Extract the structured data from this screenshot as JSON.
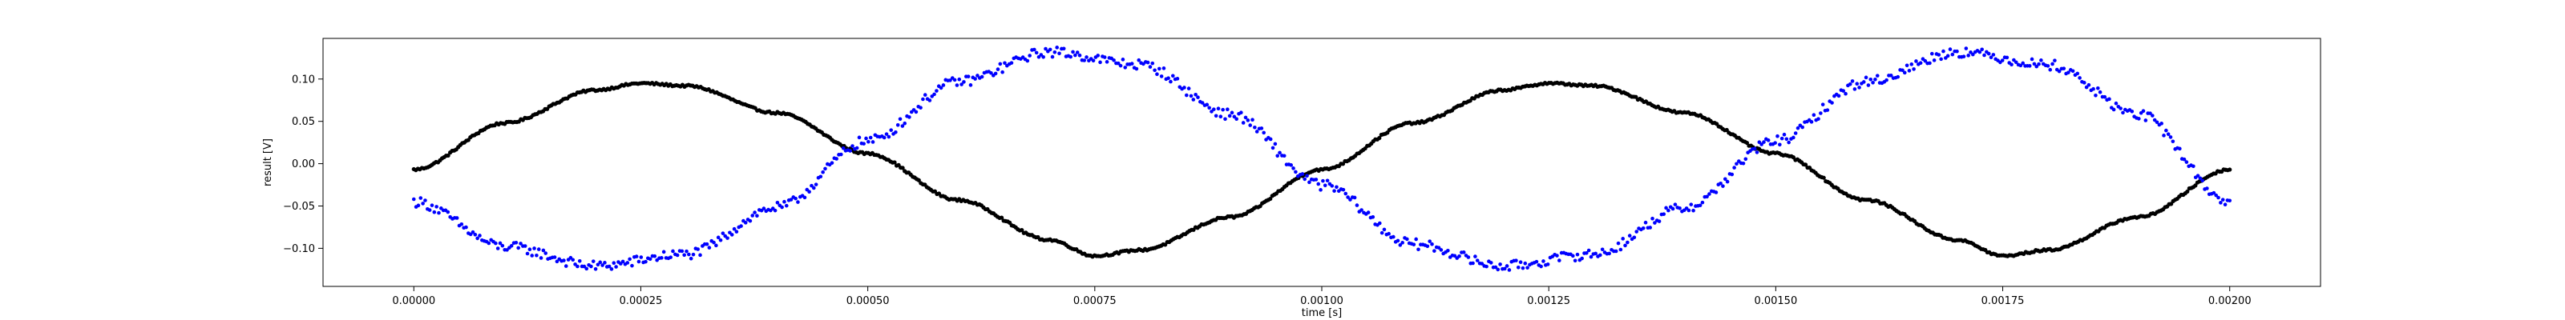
{
  "chart_data": {
    "type": "scatter",
    "title": "",
    "xlabel": "time [s]",
    "ylabel": "result [V]",
    "xlim": [
      -0.0001,
      0.0021
    ],
    "ylim": [
      -0.145,
      0.148
    ],
    "xticks": [
      0.0,
      0.00025,
      0.0005,
      0.00075,
      0.001,
      0.00125,
      0.0015,
      0.00175,
      0.002
    ],
    "xtick_labels": [
      "0.00000",
      "0.00025",
      "0.00050",
      "0.00075",
      "0.00100",
      "0.00125",
      "0.00150",
      "0.00175",
      "0.00200"
    ],
    "yticks": [
      -0.1,
      -0.05,
      0.0,
      0.05,
      0.1
    ],
    "ytick_labels": [
      "−0.10",
      "−0.05",
      "0.00",
      "0.05",
      "0.10"
    ],
    "grid": false,
    "legend": "none",
    "series": [
      {
        "color": "#000000",
        "marker": "dot",
        "x": [
          0.0,
          0.0001,
          0.0002,
          0.00025,
          0.0003,
          0.0004,
          0.0005,
          0.0006,
          0.0007,
          0.00075,
          0.0008,
          0.0009,
          0.001,
          0.0011,
          0.0012,
          0.00125,
          0.0013,
          0.0014,
          0.0015,
          0.0016,
          0.0017,
          0.00175,
          0.0018,
          0.0019,
          0.002
        ],
        "y": [
          -0.007,
          0.048,
          0.087,
          0.095,
          0.092,
          0.06,
          0.012,
          -0.043,
          -0.09,
          -0.109,
          -0.102,
          -0.063,
          -0.007,
          0.048,
          0.087,
          0.095,
          0.092,
          0.06,
          0.012,
          -0.043,
          -0.09,
          -0.109,
          -0.102,
          -0.063,
          -0.007
        ]
      },
      {
        "color": "#0000ff",
        "marker": "dot",
        "x": [
          0.0,
          0.0001,
          0.0002,
          0.0003,
          0.0004,
          0.0005,
          0.0006,
          0.0007,
          0.0008,
          0.0009,
          0.001,
          0.0011,
          0.0012,
          0.0013,
          0.0014,
          0.0015,
          0.0016,
          0.0017,
          0.0018,
          0.0019,
          0.002
        ],
        "y": [
          -0.045,
          -0.098,
          -0.121,
          -0.107,
          -0.052,
          0.027,
          0.097,
          0.132,
          0.117,
          0.058,
          -0.025,
          -0.095,
          -0.121,
          -0.107,
          -0.052,
          0.027,
          0.097,
          0.132,
          0.117,
          0.058,
          -0.045
        ]
      }
    ]
  }
}
